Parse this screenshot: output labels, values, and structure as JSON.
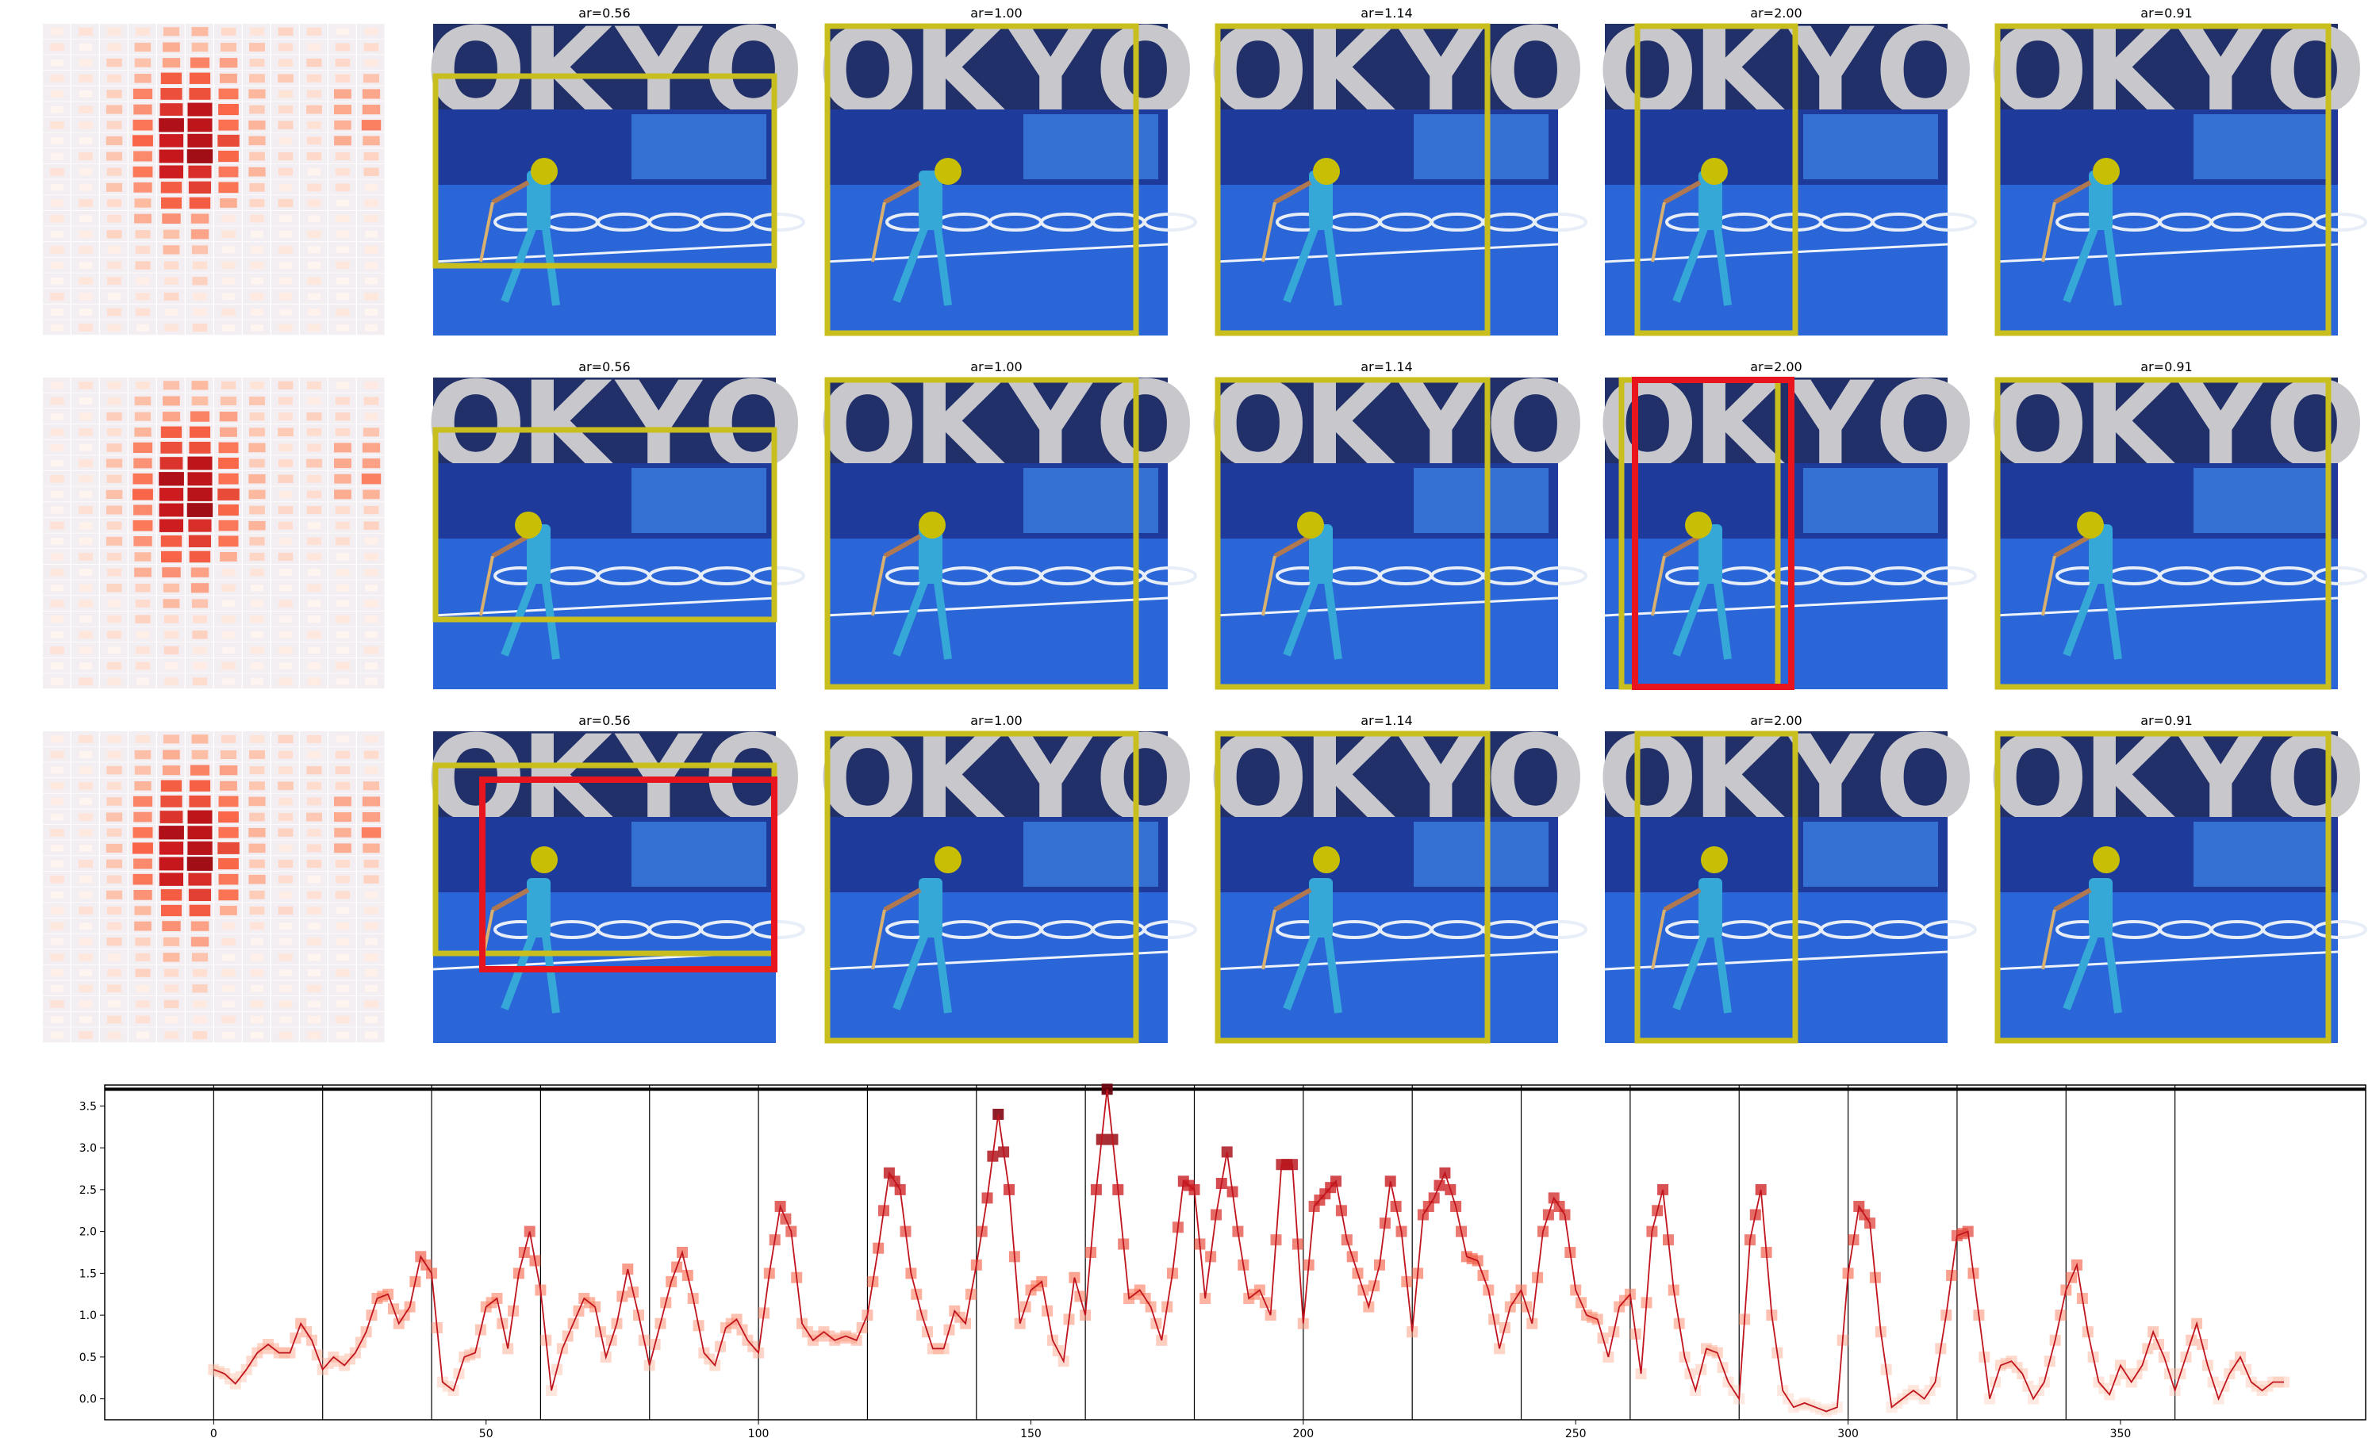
{
  "figure": {
    "rows": 3,
    "heatmap_columns": 12,
    "heatmap_rows": 20,
    "heatmap_colormap": "Reds",
    "photo_description_label": "Field hockey player in blue uniform on blue Tokyo Olympic turf, TOKYO letters in background"
  },
  "panel_titles": [
    "ar=0.56",
    "ar=1.00",
    "ar=1.14",
    "ar=2.00",
    "ar=0.91"
  ],
  "colors": {
    "yellow_box": "#c8be1e",
    "red_box": "#e8141e",
    "line": "#c0141e",
    "turf": "#2a66d8",
    "banner": "#1e3a9a",
    "sky": "#22306a"
  },
  "chart_data": {
    "type": "line",
    "title": "",
    "xlabel": "",
    "ylabel": "",
    "xlim": [
      -20,
      395
    ],
    "ylim": [
      -0.25,
      3.75
    ],
    "xticks": [
      0,
      50,
      100,
      150,
      200,
      250,
      300,
      350
    ],
    "yticks": [
      0.0,
      0.5,
      1.0,
      1.5,
      2.0,
      2.5,
      3.0,
      3.5
    ],
    "vertical_lines": [
      0,
      20,
      40,
      60,
      80,
      100,
      120,
      140,
      160,
      180,
      200,
      220,
      240,
      260,
      280,
      300,
      320,
      340,
      360
    ],
    "horizontal_line": 3.7,
    "keyframes": [
      [
        0,
        0.35
      ],
      [
        2,
        0.3
      ],
      [
        4,
        0.18
      ],
      [
        6,
        0.35
      ],
      [
        8,
        0.55
      ],
      [
        10,
        0.65
      ],
      [
        12,
        0.55
      ],
      [
        14,
        0.55
      ],
      [
        16,
        0.9
      ],
      [
        18,
        0.7
      ],
      [
        20,
        0.35
      ],
      [
        22,
        0.5
      ],
      [
        24,
        0.4
      ],
      [
        26,
        0.55
      ],
      [
        28,
        0.8
      ],
      [
        30,
        1.2
      ],
      [
        32,
        1.25
      ],
      [
        34,
        0.9
      ],
      [
        36,
        1.1
      ],
      [
        38,
        1.7
      ],
      [
        40,
        1.5
      ],
      [
        42,
        0.2
      ],
      [
        44,
        0.1
      ],
      [
        46,
        0.5
      ],
      [
        48,
        0.55
      ],
      [
        50,
        1.1
      ],
      [
        52,
        1.2
      ],
      [
        54,
        0.6
      ],
      [
        56,
        1.5
      ],
      [
        58,
        2.0
      ],
      [
        60,
        1.3
      ],
      [
        62,
        0.1
      ],
      [
        64,
        0.6
      ],
      [
        66,
        0.9
      ],
      [
        68,
        1.2
      ],
      [
        70,
        1.1
      ],
      [
        72,
        0.5
      ],
      [
        74,
        0.9
      ],
      [
        76,
        1.55
      ],
      [
        78,
        1.0
      ],
      [
        80,
        0.4
      ],
      [
        82,
        0.9
      ],
      [
        84,
        1.4
      ],
      [
        86,
        1.75
      ],
      [
        88,
        1.2
      ],
      [
        90,
        0.55
      ],
      [
        92,
        0.4
      ],
      [
        94,
        0.85
      ],
      [
        96,
        0.95
      ],
      [
        98,
        0.7
      ],
      [
        100,
        0.55
      ],
      [
        102,
        1.5
      ],
      [
        104,
        2.3
      ],
      [
        106,
        2.0
      ],
      [
        108,
        0.9
      ],
      [
        110,
        0.7
      ],
      [
        112,
        0.8
      ],
      [
        114,
        0.7
      ],
      [
        116,
        0.75
      ],
      [
        118,
        0.7
      ],
      [
        120,
        1.0
      ],
      [
        122,
        1.8
      ],
      [
        124,
        2.7
      ],
      [
        126,
        2.5
      ],
      [
        128,
        1.5
      ],
      [
        130,
        1.0
      ],
      [
        132,
        0.6
      ],
      [
        134,
        0.6
      ],
      [
        136,
        1.05
      ],
      [
        138,
        0.9
      ],
      [
        140,
        1.6
      ],
      [
        142,
        2.4
      ],
      [
        144,
        3.4
      ],
      [
        146,
        2.5
      ],
      [
        148,
        0.9
      ],
      [
        150,
        1.3
      ],
      [
        152,
        1.4
      ],
      [
        154,
        0.7
      ],
      [
        156,
        0.45
      ],
      [
        158,
        1.45
      ],
      [
        160,
        1.0
      ],
      [
        162,
        2.5
      ],
      [
        164,
        3.7
      ],
      [
        166,
        2.5
      ],
      [
        168,
        1.2
      ],
      [
        170,
        1.3
      ],
      [
        172,
        1.1
      ],
      [
        174,
        0.7
      ],
      [
        176,
        1.5
      ],
      [
        178,
        2.6
      ],
      [
        180,
        2.5
      ],
      [
        182,
        1.2
      ],
      [
        184,
        2.2
      ],
      [
        186,
        2.95
      ],
      [
        188,
        2.0
      ],
      [
        190,
        1.2
      ],
      [
        192,
        1.3
      ],
      [
        194,
        1.0
      ],
      [
        196,
        2.8
      ],
      [
        198,
        2.8
      ],
      [
        200,
        0.9
      ],
      [
        202,
        2.3
      ],
      [
        204,
        2.45
      ],
      [
        206,
        2.6
      ],
      [
        208,
        1.9
      ],
      [
        210,
        1.5
      ],
      [
        212,
        1.1
      ],
      [
        214,
        1.6
      ],
      [
        216,
        2.6
      ],
      [
        218,
        2.0
      ],
      [
        220,
        0.8
      ],
      [
        222,
        2.2
      ],
      [
        224,
        2.4
      ],
      [
        226,
        2.7
      ],
      [
        228,
        2.3
      ],
      [
        230,
        1.7
      ],
      [
        232,
        1.65
      ],
      [
        234,
        1.3
      ],
      [
        236,
        0.6
      ],
      [
        238,
        1.1
      ],
      [
        240,
        1.3
      ],
      [
        242,
        0.9
      ],
      [
        244,
        2.0
      ],
      [
        246,
        2.4
      ],
      [
        248,
        2.2
      ],
      [
        250,
        1.3
      ],
      [
        252,
        1.0
      ],
      [
        254,
        0.95
      ],
      [
        256,
        0.5
      ],
      [
        258,
        1.1
      ],
      [
        260,
        1.25
      ],
      [
        262,
        0.3
      ],
      [
        264,
        2.0
      ],
      [
        266,
        2.5
      ],
      [
        268,
        1.3
      ],
      [
        270,
        0.5
      ],
      [
        272,
        0.1
      ],
      [
        274,
        0.6
      ],
      [
        276,
        0.55
      ],
      [
        278,
        0.2
      ],
      [
        280,
        0.0
      ],
      [
        282,
        1.9
      ],
      [
        284,
        2.5
      ],
      [
        286,
        1.0
      ],
      [
        288,
        0.1
      ],
      [
        290,
        -0.1
      ],
      [
        292,
        -0.05
      ],
      [
        294,
        -0.1
      ],
      [
        296,
        -0.15
      ],
      [
        298,
        -0.1
      ],
      [
        300,
        1.5
      ],
      [
        302,
        2.3
      ],
      [
        304,
        2.1
      ],
      [
        306,
        0.8
      ],
      [
        308,
        -0.1
      ],
      [
        310,
        0.0
      ],
      [
        312,
        0.1
      ],
      [
        314,
        0.0
      ],
      [
        316,
        0.2
      ],
      [
        318,
        1.0
      ],
      [
        320,
        1.95
      ],
      [
        322,
        2.0
      ],
      [
        324,
        1.0
      ],
      [
        326,
        0.0
      ],
      [
        328,
        0.4
      ],
      [
        330,
        0.45
      ],
      [
        332,
        0.3
      ],
      [
        334,
        0.0
      ],
      [
        336,
        0.2
      ],
      [
        338,
        0.7
      ],
      [
        340,
        1.3
      ],
      [
        342,
        1.6
      ],
      [
        344,
        0.8
      ],
      [
        346,
        0.2
      ],
      [
        348,
        0.05
      ],
      [
        350,
        0.4
      ],
      [
        352,
        0.2
      ],
      [
        354,
        0.4
      ],
      [
        356,
        0.8
      ],
      [
        358,
        0.5
      ],
      [
        360,
        0.1
      ],
      [
        362,
        0.5
      ],
      [
        364,
        0.9
      ],
      [
        366,
        0.4
      ],
      [
        368,
        0.0
      ],
      [
        370,
        0.3
      ],
      [
        372,
        0.5
      ],
      [
        374,
        0.2
      ],
      [
        376,
        0.1
      ],
      [
        378,
        0.2
      ],
      [
        380,
        0.2
      ]
    ]
  }
}
